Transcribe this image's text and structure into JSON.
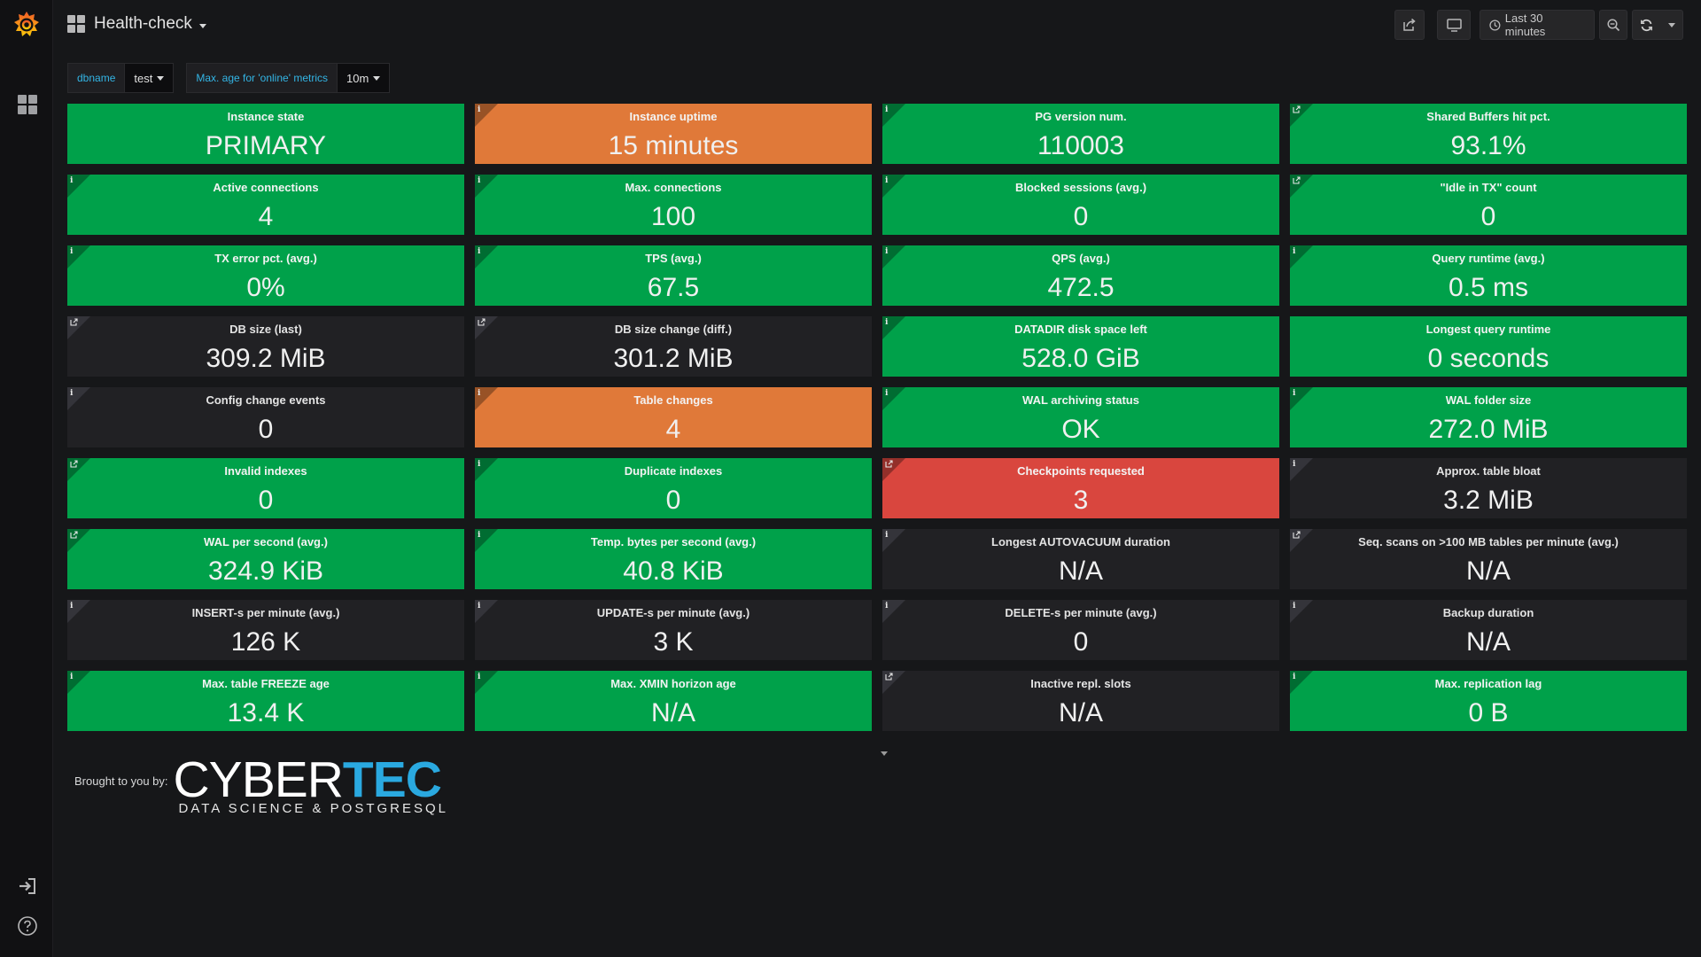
{
  "dashboard": {
    "title": "Health-check"
  },
  "toolbar": {
    "time_range": "Last 30 minutes"
  },
  "variables": [
    {
      "label": "dbname",
      "value": "test"
    },
    {
      "label": "Max. age for 'online' metrics",
      "value": "10m"
    }
  ],
  "panels": [
    {
      "title": "Instance state",
      "value": "PRIMARY",
      "status": "ok",
      "icon": "none"
    },
    {
      "title": "Instance uptime",
      "value": "15 minutes",
      "status": "warn",
      "icon": "info"
    },
    {
      "title": "PG version num.",
      "value": "110003",
      "status": "ok",
      "icon": "info"
    },
    {
      "title": "Shared Buffers hit pct.",
      "value": "93.1%",
      "status": "ok",
      "icon": "link"
    },
    {
      "title": "Active connections",
      "value": "4",
      "status": "ok",
      "icon": "info"
    },
    {
      "title": "Max. connections",
      "value": "100",
      "status": "ok",
      "icon": "info"
    },
    {
      "title": "Blocked sessions (avg.)",
      "value": "0",
      "status": "ok",
      "icon": "info"
    },
    {
      "title": "\"Idle in TX\" count",
      "value": "0",
      "status": "ok",
      "icon": "link"
    },
    {
      "title": "TX error pct. (avg.)",
      "value": "0%",
      "status": "ok",
      "icon": "info"
    },
    {
      "title": "TPS (avg.)",
      "value": "67.5",
      "status": "ok",
      "icon": "info"
    },
    {
      "title": "QPS (avg.)",
      "value": "472.5",
      "status": "ok",
      "icon": "info"
    },
    {
      "title": "Query runtime (avg.)",
      "value": "0.5 ms",
      "status": "ok",
      "icon": "info"
    },
    {
      "title": "DB size (last)",
      "value": "309.2 MiB",
      "status": "plain",
      "icon": "link"
    },
    {
      "title": "DB size change (diff.)",
      "value": "301.2 MiB",
      "status": "plain",
      "icon": "link"
    },
    {
      "title": "DATADIR disk space left",
      "value": "528.0 GiB",
      "status": "ok",
      "icon": "info"
    },
    {
      "title": "Longest query runtime",
      "value": "0 seconds",
      "status": "ok",
      "icon": "none"
    },
    {
      "title": "Config change events",
      "value": "0",
      "status": "plain",
      "icon": "info"
    },
    {
      "title": "Table changes",
      "value": "4",
      "status": "warn",
      "icon": "info"
    },
    {
      "title": "WAL archiving status",
      "value": "OK",
      "status": "ok",
      "icon": "info"
    },
    {
      "title": "WAL folder size",
      "value": "272.0 MiB",
      "status": "ok",
      "icon": "info"
    },
    {
      "title": "Invalid indexes",
      "value": "0",
      "status": "ok",
      "icon": "link"
    },
    {
      "title": "Duplicate indexes",
      "value": "0",
      "status": "ok",
      "icon": "info"
    },
    {
      "title": "Checkpoints requested",
      "value": "3",
      "status": "crit",
      "icon": "link"
    },
    {
      "title": "Approx. table bloat",
      "value": "3.2 MiB",
      "status": "plain",
      "icon": "info"
    },
    {
      "title": "WAL per second (avg.)",
      "value": "324.9 KiB",
      "status": "ok",
      "icon": "link"
    },
    {
      "title": "Temp. bytes per second (avg.)",
      "value": "40.8 KiB",
      "status": "ok",
      "icon": "info"
    },
    {
      "title": "Longest AUTOVACUUM duration",
      "value": "N/A",
      "status": "plain",
      "icon": "info"
    },
    {
      "title": "Seq. scans on >100 MB tables per minute (avg.)",
      "value": "N/A",
      "status": "plain",
      "icon": "link"
    },
    {
      "title": "INSERT-s per minute (avg.)",
      "value": "126 K",
      "status": "plain",
      "icon": "info"
    },
    {
      "title": "UPDATE-s per minute (avg.)",
      "value": "3 K",
      "status": "plain",
      "icon": "info"
    },
    {
      "title": "DELETE-s per minute (avg.)",
      "value": "0",
      "status": "plain",
      "icon": "info"
    },
    {
      "title": "Backup duration",
      "value": "N/A",
      "status": "plain",
      "icon": "info"
    },
    {
      "title": "Max. table FREEZE age",
      "value": "13.4 K",
      "status": "ok",
      "icon": "info"
    },
    {
      "title": "Max. XMIN horizon age",
      "value": "N/A",
      "status": "ok",
      "icon": "info"
    },
    {
      "title": "Inactive repl. slots",
      "value": "N/A",
      "status": "plain",
      "icon": "link"
    },
    {
      "title": "Max. replication lag",
      "value": "0 B",
      "status": "ok",
      "icon": "info"
    }
  ],
  "footer": {
    "brought_by": "Brought to you by:",
    "brand_part1": "CYBER",
    "brand_part2": "TEC",
    "tagline": "DATA SCIENCE & POSTGRESQL"
  },
  "colors": {
    "ok": "#00a14a",
    "warn": "#e07939",
    "crit": "#d9463e",
    "accent": "#33b5e5"
  }
}
